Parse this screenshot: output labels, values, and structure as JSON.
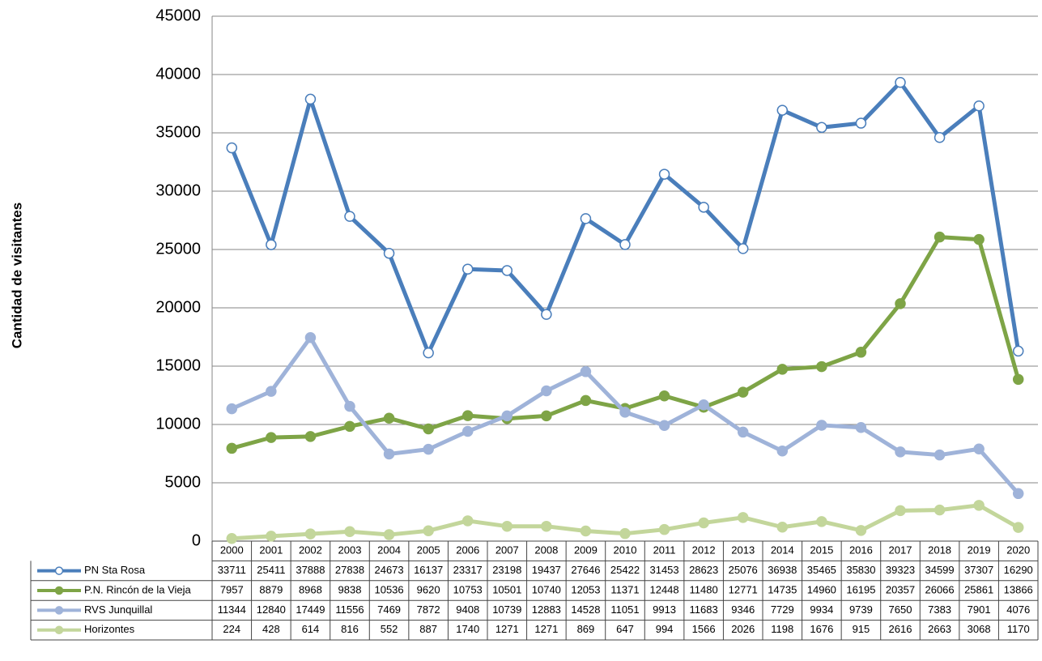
{
  "chart_data": {
    "type": "line",
    "y_label": "Cantidad de visitantes",
    "categories": [
      "2000",
      "2001",
      "2002",
      "2003",
      "2004",
      "2005",
      "2006",
      "2007",
      "2008",
      "2009",
      "2010",
      "2011",
      "2012",
      "2013",
      "2014",
      "2015",
      "2016",
      "2017",
      "2018",
      "2019",
      "2020"
    ],
    "series": [
      {
        "name": "PN Sta Rosa",
        "color": "#4a7ebb",
        "marker_face": "#ffffff",
        "values": [
          33711,
          25411,
          37888,
          27838,
          24673,
          16137,
          23317,
          23198,
          19437,
          27646,
          25422,
          31453,
          28623,
          25076,
          36938,
          35465,
          35830,
          39323,
          34599,
          37307,
          16290
        ]
      },
      {
        "name": "P.N. Rincón de la Vieja",
        "color": "#7ea446",
        "marker_face": "#7ea446",
        "values": [
          7957,
          8879,
          8968,
          9838,
          10536,
          9620,
          10753,
          10501,
          10740,
          12053,
          11371,
          12448,
          11480,
          12771,
          14735,
          14960,
          16195,
          20357,
          26066,
          25861,
          13866
        ]
      },
      {
        "name": "RVS Junquillal",
        "color": "#9fb3d9",
        "marker_face": "#9fb3d9",
        "values": [
          11344,
          12840,
          17449,
          11556,
          7469,
          7872,
          9408,
          10739,
          12883,
          14528,
          11051,
          9913,
          11683,
          9346,
          7729,
          9934,
          9739,
          7650,
          7383,
          7901,
          4076
        ]
      },
      {
        "name": "Horizontes",
        "color": "#c3d69b",
        "marker_face": "#c3d69b",
        "values": [
          224,
          428,
          614,
          816,
          552,
          887,
          1740,
          1271,
          1271,
          869,
          647,
          994,
          1566,
          2026,
          1198,
          1676,
          915,
          2616,
          2663,
          3068,
          1170
        ]
      }
    ],
    "ylim": [
      0,
      45000
    ],
    "yticks": [
      0,
      5000,
      10000,
      15000,
      20000,
      25000,
      30000,
      35000,
      40000,
      45000
    ],
    "grid": true
  }
}
